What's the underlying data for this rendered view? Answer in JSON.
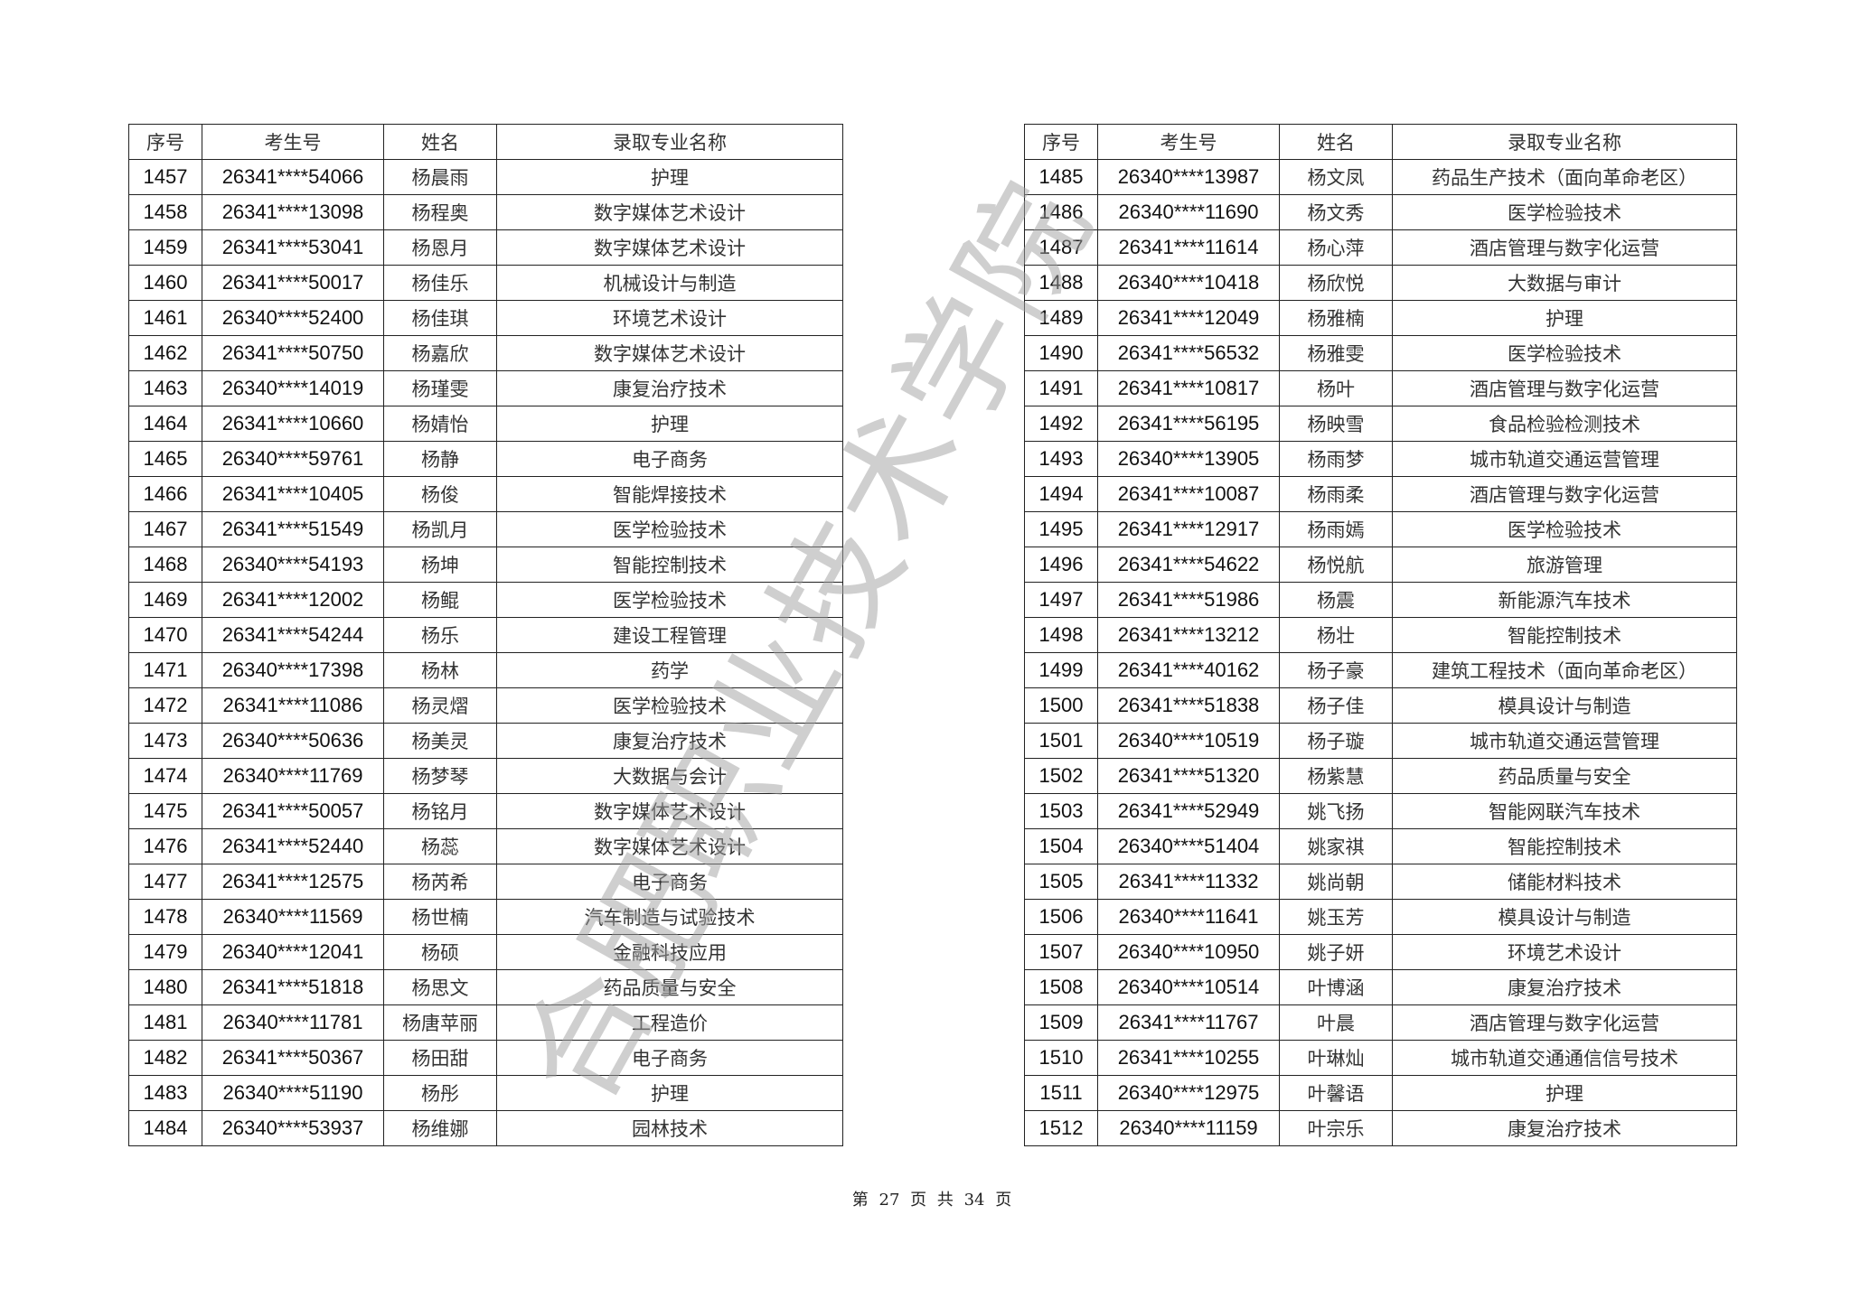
{
  "headers": {
    "seq": "序号",
    "exam_no": "考生号",
    "name": "姓名",
    "major": "录取专业名称"
  },
  "left_rows": [
    [
      "1457",
      "26341****54066",
      "杨晨雨",
      "护理"
    ],
    [
      "1458",
      "26341****13098",
      "杨程奥",
      "数字媒体艺术设计"
    ],
    [
      "1459",
      "26341****53041",
      "杨恩月",
      "数字媒体艺术设计"
    ],
    [
      "1460",
      "26341****50017",
      "杨佳乐",
      "机械设计与制造"
    ],
    [
      "1461",
      "26340****52400",
      "杨佳琪",
      "环境艺术设计"
    ],
    [
      "1462",
      "26341****50750",
      "杨嘉欣",
      "数字媒体艺术设计"
    ],
    [
      "1463",
      "26340****14019",
      "杨瑾雯",
      "康复治疗技术"
    ],
    [
      "1464",
      "26341****10660",
      "杨婧怡",
      "护理"
    ],
    [
      "1465",
      "26340****59761",
      "杨静",
      "电子商务"
    ],
    [
      "1466",
      "26341****10405",
      "杨俊",
      "智能焊接技术"
    ],
    [
      "1467",
      "26341****51549",
      "杨凯月",
      "医学检验技术"
    ],
    [
      "1468",
      "26340****54193",
      "杨坤",
      "智能控制技术"
    ],
    [
      "1469",
      "26341****12002",
      "杨鲲",
      "医学检验技术"
    ],
    [
      "1470",
      "26341****54244",
      "杨乐",
      "建设工程管理"
    ],
    [
      "1471",
      "26340****17398",
      "杨林",
      "药学"
    ],
    [
      "1472",
      "26341****11086",
      "杨灵熠",
      "医学检验技术"
    ],
    [
      "1473",
      "26340****50636",
      "杨美灵",
      "康复治疗技术"
    ],
    [
      "1474",
      "26340****11769",
      "杨梦琴",
      "大数据与会计"
    ],
    [
      "1475",
      "26341****50057",
      "杨铭月",
      "数字媒体艺术设计"
    ],
    [
      "1476",
      "26341****52440",
      "杨蕊",
      "数字媒体艺术设计"
    ],
    [
      "1477",
      "26341****12575",
      "杨芮希",
      "电子商务"
    ],
    [
      "1478",
      "26340****11569",
      "杨世楠",
      "汽车制造与试验技术"
    ],
    [
      "1479",
      "26340****12041",
      "杨硕",
      "金融科技应用"
    ],
    [
      "1480",
      "26341****51818",
      "杨思文",
      "药品质量与安全"
    ],
    [
      "1481",
      "26340****11781",
      "杨唐苹丽",
      "工程造价"
    ],
    [
      "1482",
      "26341****50367",
      "杨田甜",
      "电子商务"
    ],
    [
      "1483",
      "26340****51190",
      "杨彤",
      "护理"
    ],
    [
      "1484",
      "26340****53937",
      "杨维娜",
      "园林技术"
    ]
  ],
  "right_rows": [
    [
      "1485",
      "26340****13987",
      "杨文凤",
      "药品生产技术（面向革命老区）"
    ],
    [
      "1486",
      "26340****11690",
      "杨文秀",
      "医学检验技术"
    ],
    [
      "1487",
      "26341****11614",
      "杨心萍",
      "酒店管理与数字化运营"
    ],
    [
      "1488",
      "26340****10418",
      "杨欣悦",
      "大数据与审计"
    ],
    [
      "1489",
      "26341****12049",
      "杨雅楠",
      "护理"
    ],
    [
      "1490",
      "26341****56532",
      "杨雅雯",
      "医学检验技术"
    ],
    [
      "1491",
      "26341****10817",
      "杨叶",
      "酒店管理与数字化运营"
    ],
    [
      "1492",
      "26341****56195",
      "杨映雪",
      "食品检验检测技术"
    ],
    [
      "1493",
      "26340****13905",
      "杨雨梦",
      "城市轨道交通运营管理"
    ],
    [
      "1494",
      "26341****10087",
      "杨雨柔",
      "酒店管理与数字化运营"
    ],
    [
      "1495",
      "26341****12917",
      "杨雨嫣",
      "医学检验技术"
    ],
    [
      "1496",
      "26341****54622",
      "杨悦航",
      "旅游管理"
    ],
    [
      "1497",
      "26341****51986",
      "杨震",
      "新能源汽车技术"
    ],
    [
      "1498",
      "26341****13212",
      "杨壮",
      "智能控制技术"
    ],
    [
      "1499",
      "26341****40162",
      "杨子豪",
      "建筑工程技术（面向革命老区）"
    ],
    [
      "1500",
      "26341****51838",
      "杨子佳",
      "模具设计与制造"
    ],
    [
      "1501",
      "26340****10519",
      "杨子璇",
      "城市轨道交通运营管理"
    ],
    [
      "1502",
      "26341****51320",
      "杨紫慧",
      "药品质量与安全"
    ],
    [
      "1503",
      "26341****52949",
      "姚飞扬",
      "智能网联汽车技术"
    ],
    [
      "1504",
      "26340****51404",
      "姚家祺",
      "智能控制技术"
    ],
    [
      "1505",
      "26341****11332",
      "姚尚朝",
      "储能材料技术"
    ],
    [
      "1506",
      "26340****11641",
      "姚玉芳",
      "模具设计与制造"
    ],
    [
      "1507",
      "26340****10950",
      "姚子妍",
      "环境艺术设计"
    ],
    [
      "1508",
      "26340****10514",
      "叶博涵",
      "康复治疗技术"
    ],
    [
      "1509",
      "26341****11767",
      "叶晨",
      "酒店管理与数字化运营"
    ],
    [
      "1510",
      "26341****10255",
      "叶琳灿",
      "城市轨道交通通信信号技术"
    ],
    [
      "1511",
      "26340****12975",
      "叶馨语",
      "护理"
    ],
    [
      "1512",
      "26340****11159",
      "叶宗乐",
      "康复治疗技术"
    ]
  ],
  "footer": {
    "text": "第 27 页 共 34 页"
  },
  "watermark": "合肥职业技术学院"
}
